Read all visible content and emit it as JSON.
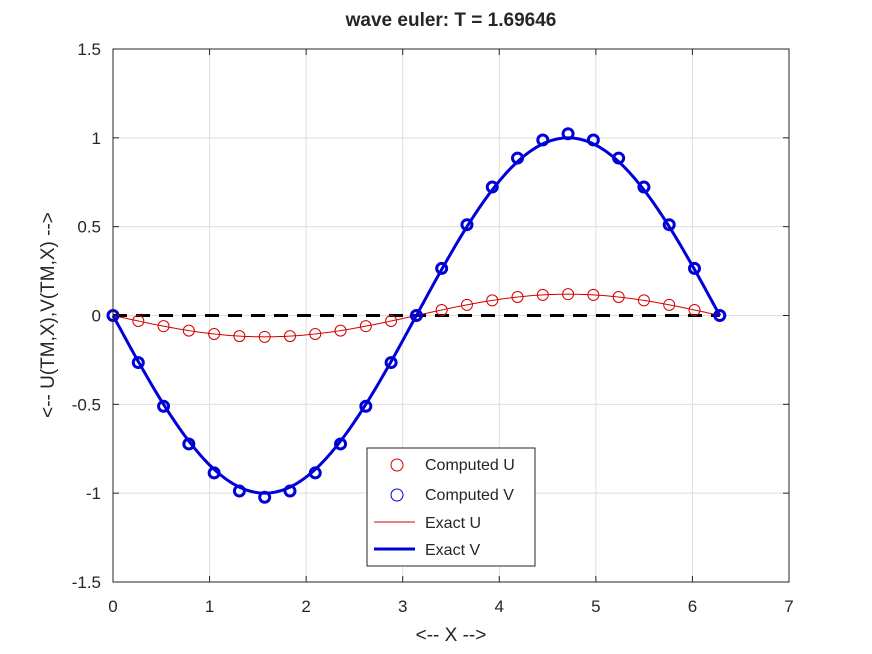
{
  "chart_data": {
    "type": "line",
    "title": "wave euler: T = 1.69646",
    "xlabel": "<-- X -->",
    "ylabel": "<-- U(TM,X),V(TM,X) -->",
    "xlim": [
      0,
      7
    ],
    "ylim": [
      -1.5,
      1.5
    ],
    "xticks": [
      "0",
      "1",
      "2",
      "3",
      "4",
      "5",
      "6",
      "7"
    ],
    "yticks": [
      "1.5",
      "1",
      "0.5",
      "0",
      "-0.5",
      "-1",
      "-1.5"
    ],
    "grid": true,
    "legend_position": "bottom-center",
    "x": [
      0,
      0.2618,
      0.5236,
      0.7854,
      1.0472,
      1.309,
      1.5708,
      1.8326,
      2.0944,
      2.3562,
      2.618,
      2.8798,
      3.1416,
      3.4034,
      3.6652,
      3.927,
      4.1888,
      4.4506,
      4.7124,
      4.9742,
      5.236,
      5.4978,
      5.7596,
      6.0214,
      6.2832
    ],
    "series": [
      {
        "name": "Computed U",
        "style": "markers",
        "color": "#d40000",
        "values": [
          0,
          -0.031,
          -0.06,
          -0.085,
          -0.104,
          -0.116,
          -0.12,
          -0.116,
          -0.104,
          -0.085,
          -0.06,
          -0.031,
          0,
          0.031,
          0.06,
          0.085,
          0.104,
          0.116,
          0.12,
          0.116,
          0.104,
          0.085,
          0.06,
          0.031,
          0
        ]
      },
      {
        "name": "Computed V",
        "style": "markers",
        "color": "#0000d8",
        "values": [
          0,
          -0.265,
          -0.511,
          -0.723,
          -0.886,
          -0.988,
          -1.023,
          -0.988,
          -0.886,
          -0.723,
          -0.511,
          -0.265,
          0,
          0.265,
          0.511,
          0.723,
          0.886,
          0.988,
          1.023,
          0.988,
          0.886,
          0.723,
          0.511,
          0.265,
          0
        ]
      },
      {
        "name": "Exact U",
        "style": "line",
        "color": "#d40000",
        "values": [
          0,
          -0.031,
          -0.06,
          -0.085,
          -0.104,
          -0.116,
          -0.12,
          -0.116,
          -0.104,
          -0.085,
          -0.06,
          -0.031,
          0,
          0.031,
          0.06,
          0.085,
          0.104,
          0.116,
          0.12,
          0.116,
          0.104,
          0.085,
          0.06,
          0.031,
          0
        ]
      },
      {
        "name": "Exact V",
        "style": "line",
        "color": "#0000d8",
        "values": [
          0,
          -0.259,
          -0.5,
          -0.707,
          -0.866,
          -0.966,
          -1,
          -0.966,
          -0.866,
          -0.707,
          -0.5,
          -0.259,
          0,
          0.259,
          0.5,
          0.707,
          0.866,
          0.966,
          1,
          0.966,
          0.866,
          0.707,
          0.5,
          0.259,
          0
        ]
      },
      {
        "name": "",
        "style": "dashed-line",
        "color": "#000000",
        "x": [
          0,
          6.2832
        ],
        "values": [
          0,
          0
        ]
      }
    ]
  }
}
